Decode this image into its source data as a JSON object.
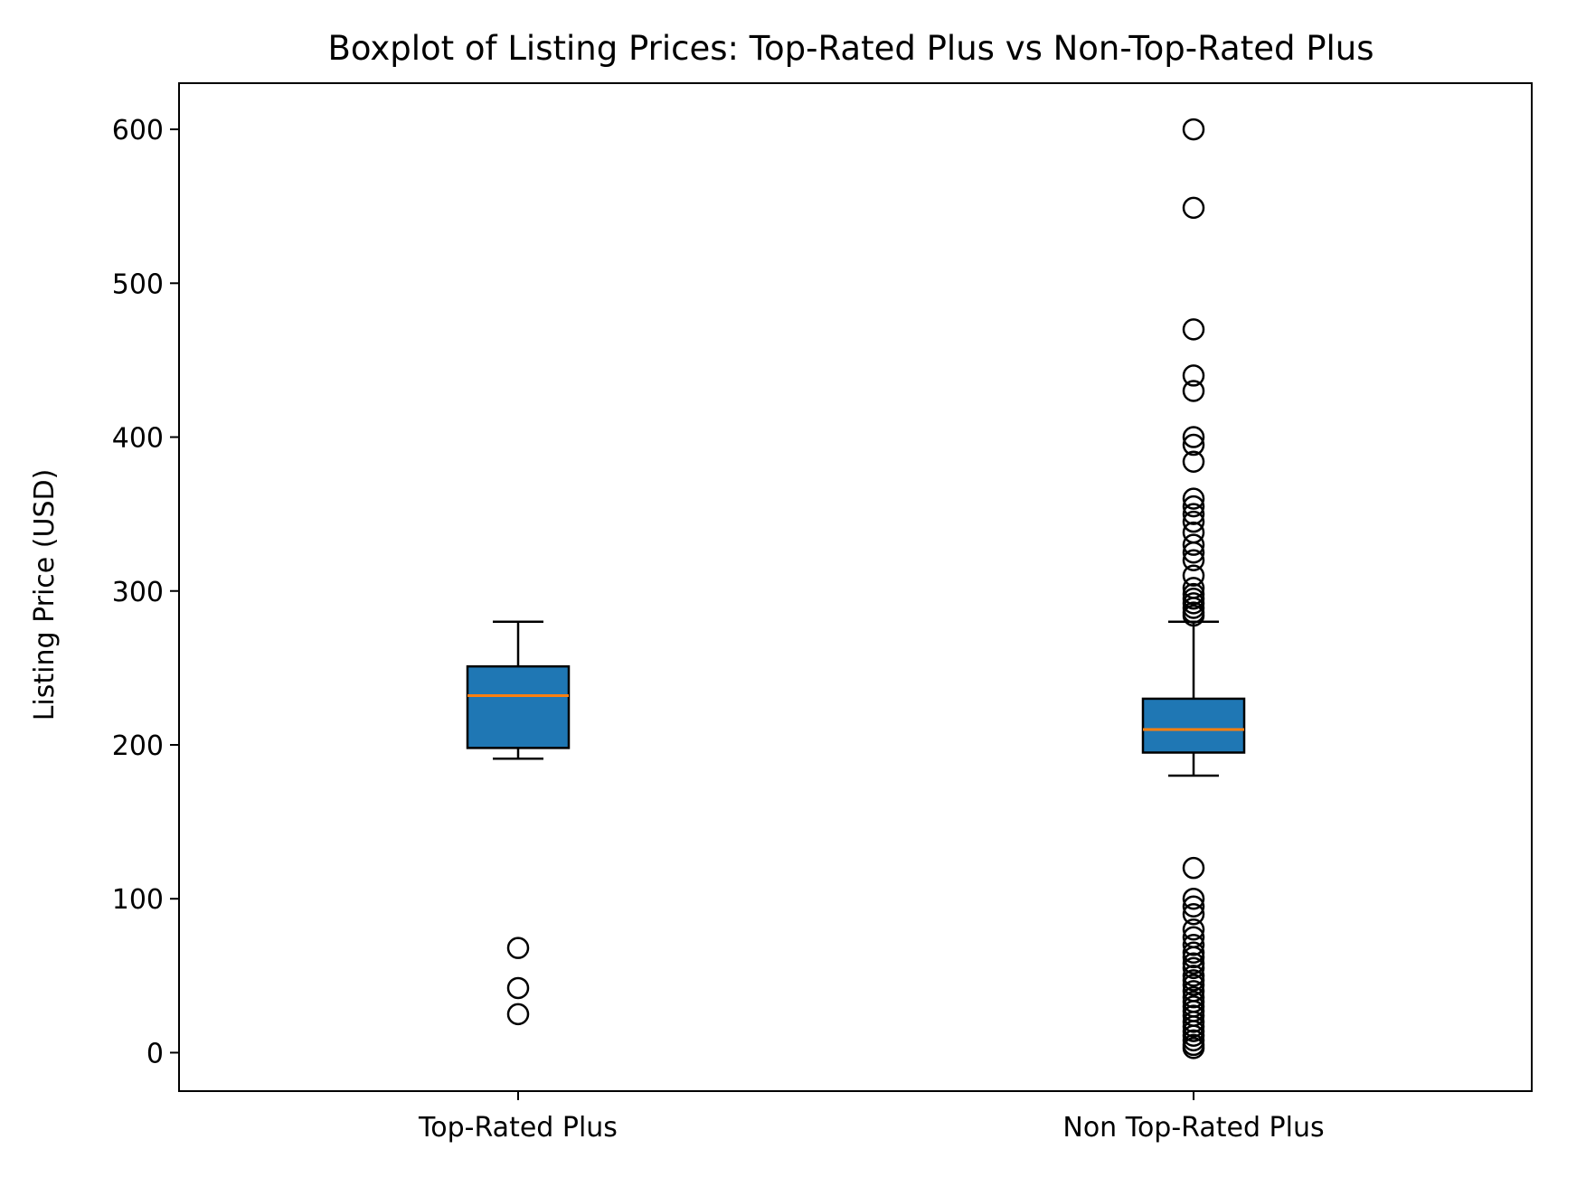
{
  "chart_data": {
    "type": "boxplot",
    "title": "Boxplot of Listing Prices: Top-Rated Plus vs Non-Top-Rated Plus",
    "xlabel": "",
    "ylabel": "Listing Price (USD)",
    "ylim": [
      -25,
      630
    ],
    "yticks": [
      0,
      100,
      200,
      300,
      400,
      500,
      600
    ],
    "grid": false,
    "categories": [
      "Top-Rated Plus",
      "Non Top-Rated Plus"
    ],
    "box_color": "#1f77b4",
    "median_color": "#ff7f0e",
    "boxes": [
      {
        "name": "Top-Rated Plus",
        "whisker_low": 191,
        "q1": 198,
        "median": 232,
        "q3": 251,
        "whisker_high": 280,
        "outliers": [
          68,
          42,
          25
        ]
      },
      {
        "name": "Non Top-Rated Plus",
        "whisker_low": 180,
        "q1": 195,
        "median": 210,
        "q3": 230,
        "whisker_high": 280,
        "outliers": [
          600,
          549,
          470,
          440,
          430,
          400,
          395,
          384,
          360,
          355,
          350,
          345,
          338,
          330,
          325,
          320,
          310,
          302,
          298,
          295,
          292,
          289,
          286,
          284,
          120,
          100,
          95,
          90,
          80,
          75,
          70,
          65,
          62,
          58,
          55,
          50,
          47,
          44,
          40,
          36,
          33,
          30,
          27,
          24,
          20,
          17,
          14,
          11,
          8,
          5,
          3
        ]
      }
    ]
  }
}
